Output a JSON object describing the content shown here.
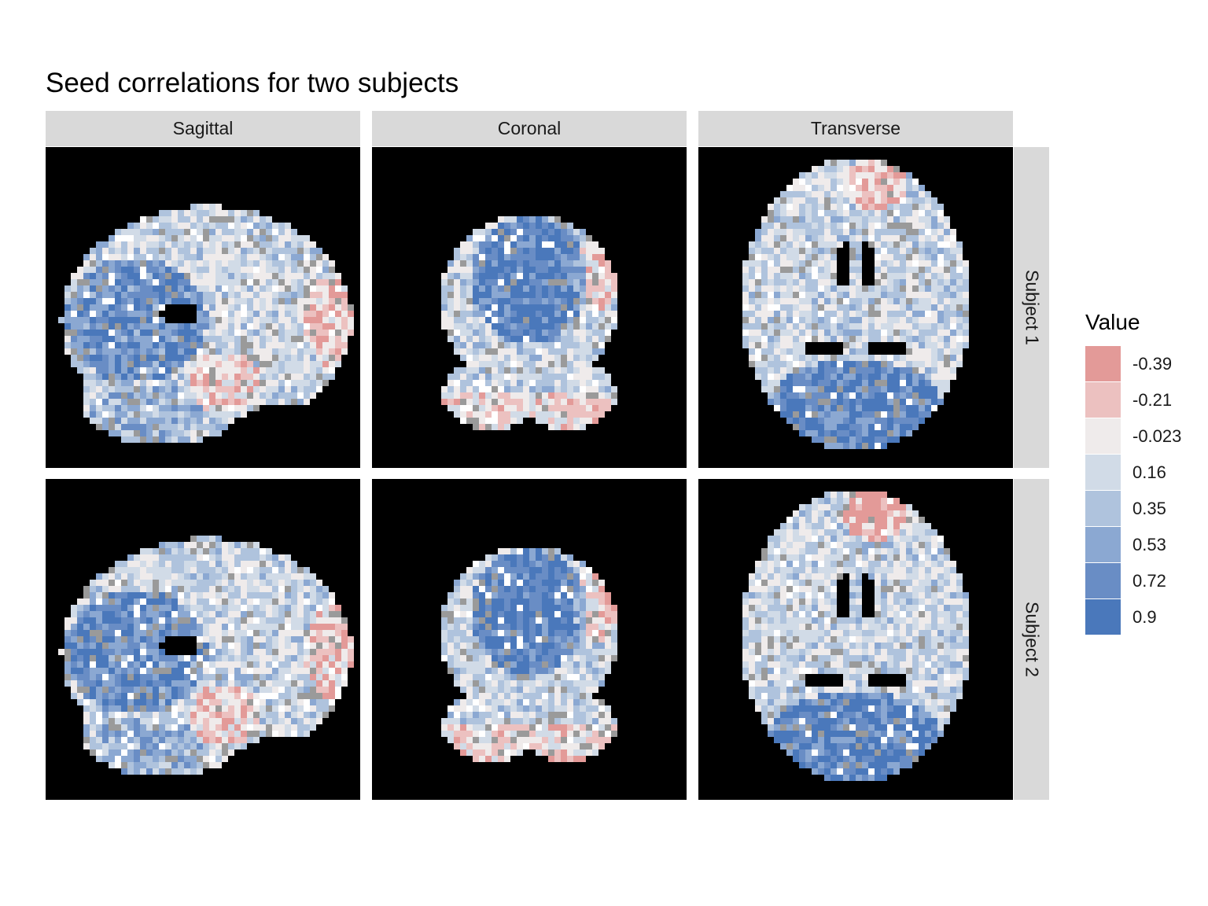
{
  "chart_data": {
    "type": "heatmap",
    "title": "Seed correlations for two subjects",
    "columns": [
      "Sagittal",
      "Coronal",
      "Transverse"
    ],
    "rows": [
      "Subject 1",
      "Subject 2"
    ],
    "legend": {
      "title": "Value",
      "position": "right",
      "breaks": [
        {
          "label": "-0.39",
          "value": -0.39,
          "color": "#e39a98"
        },
        {
          "label": "-0.21",
          "value": -0.21,
          "color": "#ecc1c0"
        },
        {
          "label": "-0.023",
          "value": -0.023,
          "color": "#efebeb"
        },
        {
          "label": "0.16",
          "value": 0.16,
          "color": "#d1dbe7"
        },
        {
          "label": "0.35",
          "value": 0.35,
          "color": "#afc3dd"
        },
        {
          "label": "0.53",
          "value": 0.53,
          "color": "#8ba8d2"
        },
        {
          "label": "0.72",
          "value": 0.72,
          "color": "#698dc5"
        },
        {
          "label": "0.9",
          "value": 0.9,
          "color": "#4a78bb"
        }
      ]
    },
    "background": "#000000"
  }
}
